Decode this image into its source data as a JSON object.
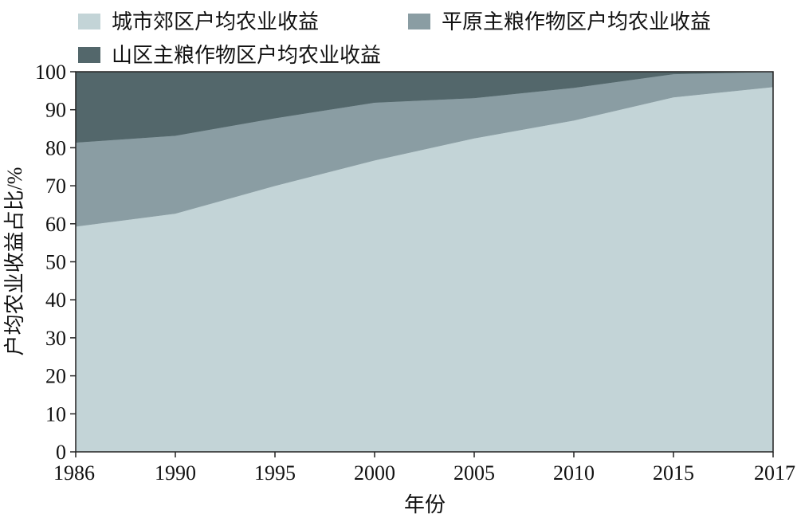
{
  "chart_data": {
    "type": "area",
    "stacked": true,
    "title": "",
    "xlabel": "年份",
    "ylabel": "户均农业收益占比/%",
    "categories": [
      "1986",
      "1990",
      "1995",
      "2000",
      "2005",
      "2010",
      "2015",
      "2017"
    ],
    "ylim": [
      0,
      100
    ],
    "yticks": [
      0,
      10,
      20,
      30,
      40,
      50,
      60,
      70,
      80,
      90,
      100
    ],
    "grid": false,
    "legend_position": "top",
    "series": [
      {
        "name": "城市郊区户均农业收益",
        "color": "#c3d4d7",
        "values": [
          59.3,
          62.7,
          70.0,
          76.7,
          82.5,
          87.2,
          93.3,
          96.0
        ]
      },
      {
        "name": "平原主粮作物区户均农业收益",
        "color": "#8a9da3",
        "values": [
          22.1,
          20.5,
          17.8,
          15.2,
          10.6,
          8.6,
          6.1,
          4.0
        ]
      },
      {
        "name": "山区主粮作物区户均农业收益",
        "color": "#53676b",
        "values": [
          18.6,
          16.8,
          12.2,
          8.1,
          6.9,
          4.2,
          0.6,
          0.0
        ]
      }
    ]
  }
}
